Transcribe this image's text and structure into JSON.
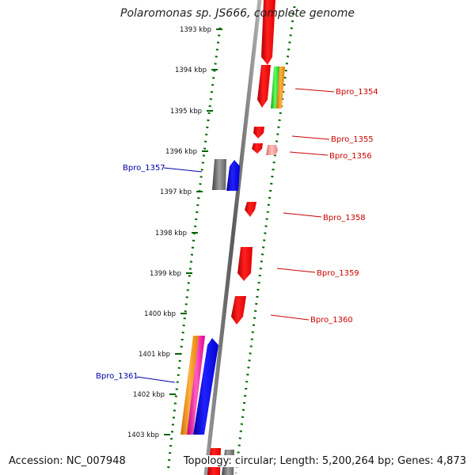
{
  "title": "Polaromonas sp. JS666, complete genome",
  "accession": "Accession: NC_007948",
  "topology": "Topology: circular; Length: 5,200,264 bp; Genes: 4,873",
  "colors": {
    "forward_label": "#cc0000",
    "reverse_label": "#0000aa",
    "tick": "#006600",
    "backbone": "#808080"
  },
  "ticks": [
    "1393 kbp",
    "1394 kbp",
    "1395 kbp",
    "1396 kbp",
    "1397 kbp",
    "1398 kbp",
    "1399 kbp",
    "1400 kbp",
    "1401 kbp",
    "1402 kbp",
    "1403 kbp"
  ],
  "gene_labels": {
    "bpro_1354": "Bpro_1354",
    "bpro_1355": "Bpro_1355",
    "bpro_1356": "Bpro_1356",
    "bpro_1357": "Bpro_1357",
    "bpro_1358": "Bpro_1358",
    "bpro_1359": "Bpro_1359",
    "bpro_1360": "Bpro_1360",
    "bpro_1361": "Bpro_1361"
  }
}
